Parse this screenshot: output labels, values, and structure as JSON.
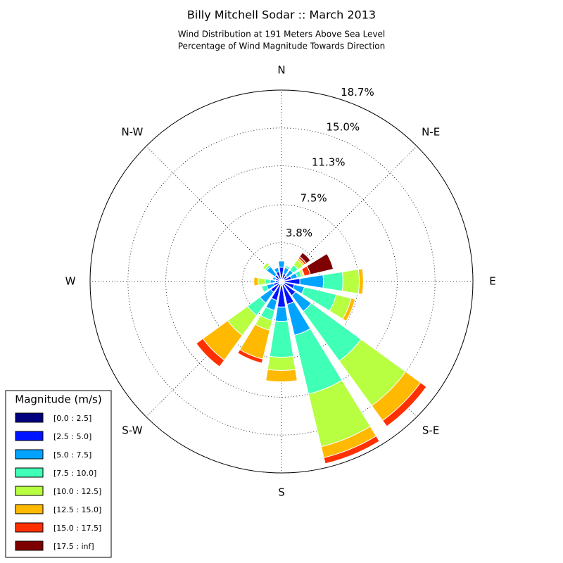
{
  "chart_data": {
    "type": "windrose",
    "title": "Billy Mitchell Sodar :: March 2013",
    "subtitle": [
      "Wind Distribution at 191 Meters Above Sea Level",
      "Percentage of Wind Magnitude Towards Direction"
    ],
    "categories": [
      "N",
      null,
      "N-E",
      null,
      "E",
      null,
      "S-E",
      null,
      "S",
      null,
      "S-W",
      null,
      "W",
      null,
      "N-W",
      null
    ],
    "ylim": [
      0,
      18.7
    ],
    "yticks": [
      {
        "value": 3.8,
        "label": "3.8%"
      },
      {
        "value": 7.5,
        "label": "7.5%"
      },
      {
        "value": 11.3,
        "label": "11.3%"
      },
      {
        "value": 15.0,
        "label": "15.0%"
      },
      {
        "value": 18.7,
        "label": "18.7%"
      }
    ],
    "grid": true,
    "legend_title": "Magnitude (m/s)",
    "legend_position": "lower left",
    "series": [
      {
        "name": "[0.0 : 2.5]",
        "color": "#00007f",
        "values": [
          0.3,
          0.2,
          0.2,
          0.3,
          0.3,
          0.3,
          0.3,
          0.3,
          0.4,
          0.3,
          0.3,
          0.2,
          0.2,
          0.2,
          0.2,
          0.2
        ]
      },
      {
        "name": "[2.5 : 5.0]",
        "color": "#0014ff",
        "values": [
          1.1,
          0.6,
          0.5,
          0.7,
          1.5,
          1.0,
          1.4,
          2.0,
          2.1,
          1.6,
          1.0,
          0.6,
          0.4,
          0.4,
          0.6,
          0.8
        ]
      },
      {
        "name": "[5.0 : 7.5]",
        "color": "#00a4ff",
        "values": [
          0.6,
          0.6,
          0.7,
          0.6,
          2.3,
          1.0,
          1.9,
          3.1,
          1.4,
          1.0,
          1.3,
          0.7,
          0.5,
          0.3,
          1.0,
          0.4
        ]
      },
      {
        "name": "[7.5 : 10.0]",
        "color": "#40ffb7",
        "values": [
          0,
          0.2,
          0.6,
          0.4,
          1.9,
          3.2,
          6.0,
          5.9,
          3.5,
          1.0,
          1.5,
          0.5,
          0.5,
          0,
          0.2,
          0
        ]
      },
      {
        "name": "[10.0 : 12.5]",
        "color": "#b7ff40",
        "values": [
          0,
          0,
          0.6,
          0.2,
          1.6,
          1.5,
          5.4,
          5.3,
          1.3,
          1.0,
          2.4,
          0,
          0.7,
          0,
          0.3,
          0
        ]
      },
      {
        "name": "[12.5 : 15.0]",
        "color": "#ffb900",
        "values": [
          0,
          0,
          0.2,
          0.1,
          0.4,
          0.4,
          1.8,
          1.1,
          1.1,
          2.9,
          3.0,
          0,
          0.4,
          0,
          0,
          0
        ]
      },
      {
        "name": "[15.0 : 17.5]",
        "color": "#ff3000",
        "values": [
          0,
          0,
          0.2,
          0.6,
          0,
          0,
          0.7,
          0.6,
          0,
          0.4,
          0.8,
          0,
          0,
          0,
          0,
          0
        ]
      },
      {
        "name": "[17.5 : inf]",
        "color": "#7f0000",
        "values": [
          0,
          0,
          0.5,
          2.3,
          0,
          0,
          0,
          0,
          0,
          0,
          0,
          0,
          0,
          0,
          0,
          0
        ]
      }
    ]
  }
}
